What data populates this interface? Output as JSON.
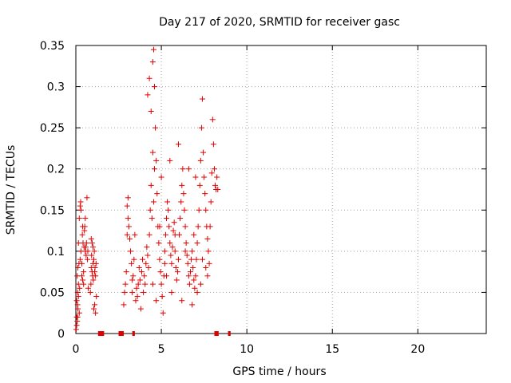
{
  "chart_data": {
    "type": "scatter",
    "title": "Day 217 of 2020, SRMTID for receiver gasc",
    "xlabel": "GPS time / hours",
    "ylabel": "SRMTID / TECUs",
    "xlim": [
      0,
      24
    ],
    "ylim": [
      0,
      0.35
    ],
    "x_ticks": [
      0,
      5,
      10,
      15,
      20
    ],
    "x_tick_labels": [
      "0",
      "5",
      "10",
      "15",
      "20"
    ],
    "y_ticks": [
      0,
      0.05,
      0.1,
      0.15,
      0.2,
      0.25,
      0.3,
      0.35
    ],
    "y_tick_labels": [
      "0",
      "0.05",
      "0.1",
      "0.15",
      "0.2",
      "0.25",
      "0.3",
      "0.35"
    ],
    "grid": true,
    "marker": "+",
    "color": "#e00000",
    "zero_segments": [
      [
        1.3,
        1.65
      ],
      [
        2.5,
        2.8
      ],
      [
        3.3,
        3.45
      ],
      [
        8.1,
        8.35
      ],
      [
        8.9,
        9.05
      ]
    ],
    "series": [
      {
        "name": "SRMTID",
        "points": [
          [
            0.02,
            0.005
          ],
          [
            0.05,
            0.01
          ],
          [
            0.08,
            0.015
          ],
          [
            0.1,
            0.02
          ],
          [
            0.12,
            0.03
          ],
          [
            0.05,
            0.04
          ],
          [
            0.1,
            0.05
          ],
          [
            0.15,
            0.06
          ],
          [
            0.08,
            0.07
          ],
          [
            0.12,
            0.08
          ],
          [
            0.18,
            0.085
          ],
          [
            0.05,
            0.02
          ],
          [
            0.1,
            0.035
          ],
          [
            0.15,
            0.045
          ],
          [
            0.2,
            0.025
          ],
          [
            0.22,
            0.055
          ],
          [
            0.25,
            0.09
          ],
          [
            0.2,
            0.14
          ],
          [
            0.25,
            0.155
          ],
          [
            0.28,
            0.16
          ],
          [
            0.3,
            0.15
          ],
          [
            0.15,
            0.11
          ],
          [
            0.3,
            0.1
          ],
          [
            0.35,
            0.085
          ],
          [
            0.38,
            0.12
          ],
          [
            0.4,
            0.13
          ],
          [
            0.42,
            0.11
          ],
          [
            0.45,
            0.06
          ],
          [
            0.48,
            0.105
          ],
          [
            0.5,
            0.125
          ],
          [
            0.52,
            0.13
          ],
          [
            0.55,
            0.1
          ],
          [
            0.58,
            0.105
          ],
          [
            0.6,
            0.095
          ],
          [
            0.62,
            0.11
          ],
          [
            0.65,
            0.165
          ],
          [
            0.68,
            0.09
          ],
          [
            0.7,
            0.1
          ],
          [
            0.72,
            0.055
          ],
          [
            0.35,
            0.07
          ],
          [
            0.4,
            0.065
          ],
          [
            0.45,
            0.075
          ],
          [
            0.55,
            0.14
          ],
          [
            0.85,
            0.05
          ],
          [
            0.88,
            0.06
          ],
          [
            0.9,
            0.08
          ],
          [
            0.92,
            0.095
          ],
          [
            0.95,
            0.075
          ],
          [
            0.98,
            0.07
          ],
          [
            1.0,
            0.085
          ],
          [
            1.02,
            0.065
          ],
          [
            1.05,
            0.09
          ],
          [
            1.08,
            0.1
          ],
          [
            1.1,
            0.075
          ],
          [
            1.12,
            0.08
          ],
          [
            1.15,
            0.07
          ],
          [
            1.18,
            0.085
          ],
          [
            1.2,
            0.045
          ],
          [
            1.05,
            0.03
          ],
          [
            1.1,
            0.035
          ],
          [
            1.15,
            0.025
          ],
          [
            0.95,
            0.11
          ],
          [
            1.0,
            0.105
          ],
          [
            0.9,
            0.115
          ],
          [
            2.8,
            0.035
          ],
          [
            2.85,
            0.05
          ],
          [
            2.9,
            0.06
          ],
          [
            2.95,
            0.075
          ],
          [
            3.0,
            0.12
          ],
          [
            3.05,
            0.14
          ],
          [
            3.0,
            0.155
          ],
          [
            3.05,
            0.165
          ],
          [
            3.1,
            0.13
          ],
          [
            3.15,
            0.115
          ],
          [
            3.2,
            0.1
          ],
          [
            3.25,
            0.085
          ],
          [
            3.3,
            0.065
          ],
          [
            3.3,
            0.05
          ],
          [
            3.35,
            0.07
          ],
          [
            3.4,
            0.09
          ],
          [
            3.45,
            0.12
          ],
          [
            3.5,
            0.04
          ],
          [
            3.55,
            0.055
          ],
          [
            3.6,
            0.045
          ],
          [
            3.65,
            0.06
          ],
          [
            3.7,
            0.08
          ],
          [
            3.75,
            0.065
          ],
          [
            3.8,
            0.03
          ],
          [
            3.85,
            0.075
          ],
          [
            3.9,
            0.09
          ],
          [
            3.95,
            0.05
          ],
          [
            4.0,
            0.07
          ],
          [
            4.05,
            0.06
          ],
          [
            4.1,
            0.085
          ],
          [
            4.15,
            0.105
          ],
          [
            4.2,
            0.095
          ],
          [
            4.25,
            0.08
          ],
          [
            4.3,
            0.12
          ],
          [
            4.35,
            0.15
          ],
          [
            4.4,
            0.18
          ],
          [
            4.45,
            0.14
          ],
          [
            4.5,
            0.22
          ],
          [
            4.55,
            0.16
          ],
          [
            4.6,
            0.2
          ],
          [
            4.2,
            0.29
          ],
          [
            4.3,
            0.31
          ],
          [
            4.4,
            0.27
          ],
          [
            4.5,
            0.33
          ],
          [
            4.55,
            0.345
          ],
          [
            4.6,
            0.3
          ],
          [
            4.65,
            0.25
          ],
          [
            4.7,
            0.21
          ],
          [
            4.75,
            0.17
          ],
          [
            4.8,
            0.13
          ],
          [
            4.85,
            0.11
          ],
          [
            4.9,
            0.09
          ],
          [
            4.95,
            0.075
          ],
          [
            5.0,
            0.06
          ],
          [
            5.05,
            0.045
          ],
          [
            5.1,
            0.025
          ],
          [
            5.15,
            0.07
          ],
          [
            5.2,
            0.1
          ],
          [
            5.25,
            0.12
          ],
          [
            5.3,
            0.14
          ],
          [
            5.35,
            0.16
          ],
          [
            5.4,
            0.15
          ],
          [
            5.45,
            0.13
          ],
          [
            5.5,
            0.11
          ],
          [
            5.55,
            0.095
          ],
          [
            5.6,
            0.085
          ],
          [
            5.65,
            0.105
          ],
          [
            5.7,
            0.125
          ],
          [
            5.75,
            0.135
          ],
          [
            5.8,
            0.1
          ],
          [
            5.85,
            0.08
          ],
          [
            5.9,
            0.065
          ],
          [
            5.95,
            0.075
          ],
          [
            6.0,
            0.09
          ],
          [
            6.05,
            0.12
          ],
          [
            6.1,
            0.14
          ],
          [
            6.15,
            0.16
          ],
          [
            6.2,
            0.18
          ],
          [
            6.25,
            0.2
          ],
          [
            6.3,
            0.17
          ],
          [
            6.35,
            0.15
          ],
          [
            6.4,
            0.13
          ],
          [
            6.45,
            0.11
          ],
          [
            6.5,
            0.095
          ],
          [
            6.55,
            0.085
          ],
          [
            6.6,
            0.07
          ],
          [
            6.65,
            0.06
          ],
          [
            6.7,
            0.075
          ],
          [
            6.75,
            0.09
          ],
          [
            6.8,
            0.1
          ],
          [
            6.85,
            0.08
          ],
          [
            6.9,
            0.065
          ],
          [
            6.95,
            0.055
          ],
          [
            7.0,
            0.07
          ],
          [
            7.05,
            0.09
          ],
          [
            7.1,
            0.11
          ],
          [
            7.15,
            0.13
          ],
          [
            7.2,
            0.15
          ],
          [
            7.25,
            0.18
          ],
          [
            7.3,
            0.21
          ],
          [
            7.35,
            0.25
          ],
          [
            7.4,
            0.285
          ],
          [
            7.45,
            0.22
          ],
          [
            7.5,
            0.19
          ],
          [
            7.55,
            0.17
          ],
          [
            7.6,
            0.15
          ],
          [
            7.65,
            0.13
          ],
          [
            7.7,
            0.115
          ],
          [
            7.75,
            0.1
          ],
          [
            7.8,
            0.085
          ],
          [
            7.85,
            0.13
          ],
          [
            7.9,
            0.16
          ],
          [
            7.95,
            0.195
          ],
          [
            8.0,
            0.26
          ],
          [
            8.05,
            0.23
          ],
          [
            8.1,
            0.2
          ],
          [
            8.15,
            0.18
          ],
          [
            8.2,
            0.175
          ],
          [
            8.25,
            0.19
          ],
          [
            8.3,
            0.175
          ],
          [
            4.5,
            0.06
          ],
          [
            4.7,
            0.04
          ],
          [
            5.3,
            0.07
          ],
          [
            5.6,
            0.05
          ],
          [
            6.2,
            0.04
          ],
          [
            6.8,
            0.035
          ],
          [
            7.1,
            0.05
          ],
          [
            7.3,
            0.06
          ],
          [
            7.6,
            0.08
          ],
          [
            5.0,
            0.19
          ],
          [
            5.5,
            0.21
          ],
          [
            6.0,
            0.23
          ],
          [
            6.6,
            0.2
          ],
          [
            7.0,
            0.19
          ],
          [
            4.9,
            0.13
          ],
          [
            5.2,
            0.085
          ],
          [
            5.8,
            0.12
          ],
          [
            6.4,
            0.1
          ],
          [
            6.9,
            0.12
          ],
          [
            7.4,
            0.09
          ],
          [
            7.7,
            0.07
          ]
        ]
      }
    ]
  }
}
